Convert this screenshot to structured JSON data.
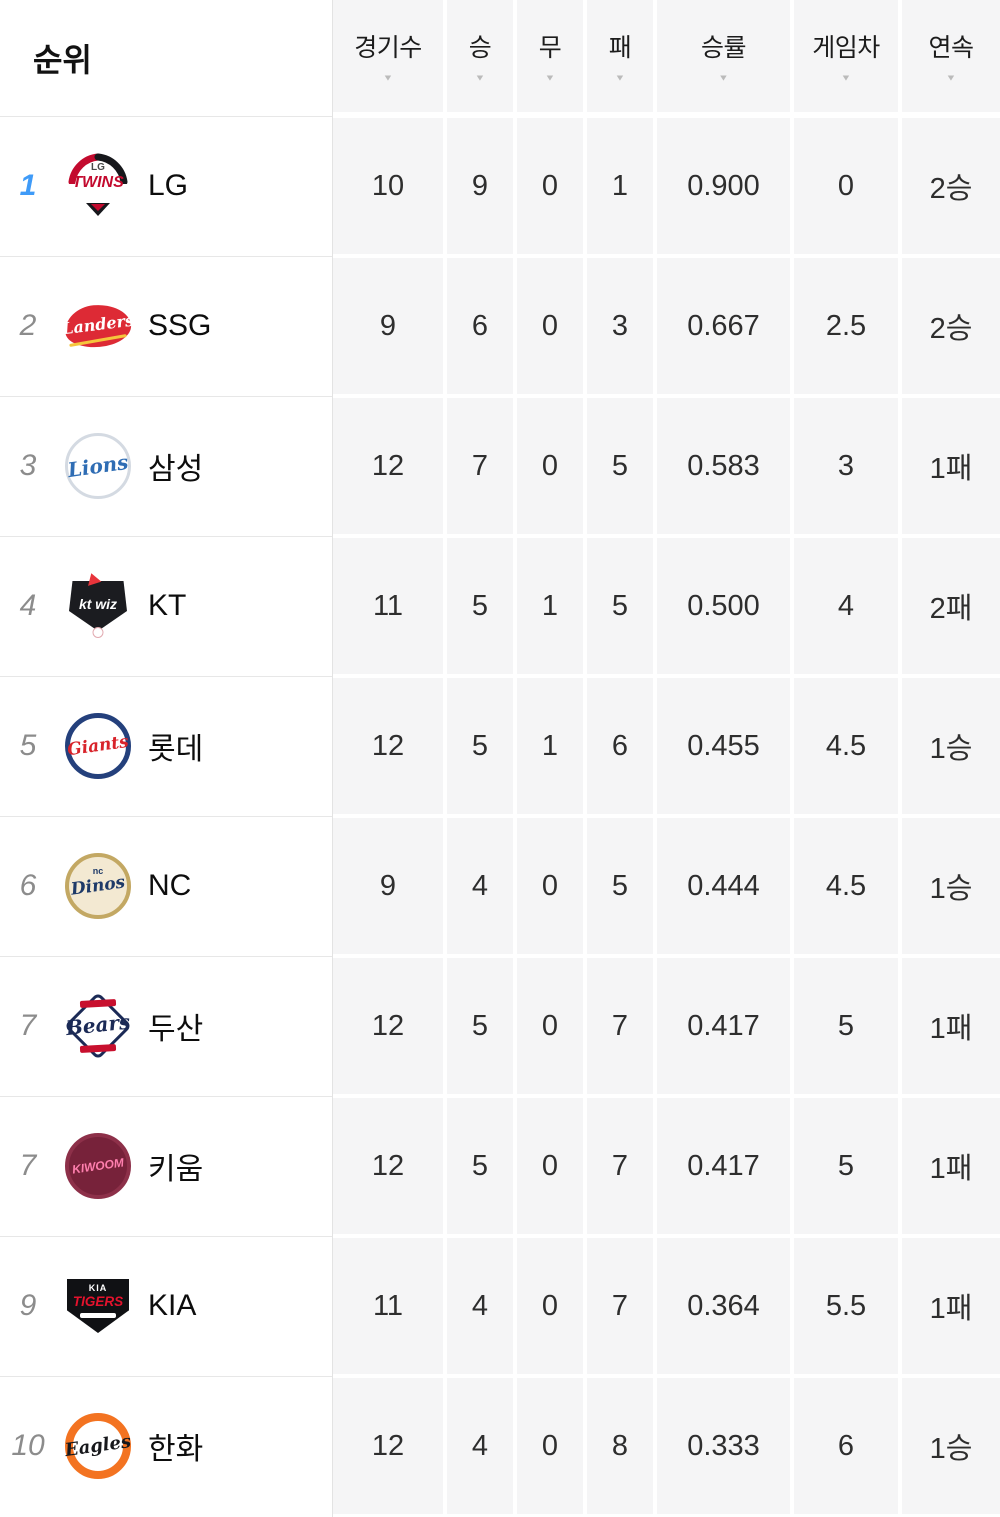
{
  "table": {
    "rank_label": "순위",
    "sort_icon": "▼",
    "columns": [
      {
        "key": "games",
        "label": "경기수"
      },
      {
        "key": "wins",
        "label": "승"
      },
      {
        "key": "draws",
        "label": "무"
      },
      {
        "key": "losses",
        "label": "패"
      },
      {
        "key": "win_rate",
        "label": "승률"
      },
      {
        "key": "games_behind",
        "label": "게임차"
      },
      {
        "key": "streak",
        "label": "연속"
      }
    ],
    "rows": [
      {
        "rank": "1",
        "rank_highlight": true,
        "team": "LG",
        "logo": "lg-twins",
        "games": "10",
        "wins": "9",
        "draws": "0",
        "losses": "1",
        "win_rate": "0.900",
        "games_behind": "0",
        "streak": "2승"
      },
      {
        "rank": "2",
        "rank_highlight": false,
        "team": "SSG",
        "logo": "ssg-landers",
        "games": "9",
        "wins": "6",
        "draws": "0",
        "losses": "3",
        "win_rate": "0.667",
        "games_behind": "2.5",
        "streak": "2승"
      },
      {
        "rank": "3",
        "rank_highlight": false,
        "team": "삼성",
        "logo": "samsung-lions",
        "games": "12",
        "wins": "7",
        "draws": "0",
        "losses": "5",
        "win_rate": "0.583",
        "games_behind": "3",
        "streak": "1패"
      },
      {
        "rank": "4",
        "rank_highlight": false,
        "team": "KT",
        "logo": "kt-wiz",
        "games": "11",
        "wins": "5",
        "draws": "1",
        "losses": "5",
        "win_rate": "0.500",
        "games_behind": "4",
        "streak": "2패"
      },
      {
        "rank": "5",
        "rank_highlight": false,
        "team": "롯데",
        "logo": "lotte-giants",
        "games": "12",
        "wins": "5",
        "draws": "1",
        "losses": "6",
        "win_rate": "0.455",
        "games_behind": "4.5",
        "streak": "1승"
      },
      {
        "rank": "6",
        "rank_highlight": false,
        "team": "NC",
        "logo": "nc-dinos",
        "games": "9",
        "wins": "4",
        "draws": "0",
        "losses": "5",
        "win_rate": "0.444",
        "games_behind": "4.5",
        "streak": "1승"
      },
      {
        "rank": "7",
        "rank_highlight": false,
        "team": "두산",
        "logo": "doosan-bears",
        "games": "12",
        "wins": "5",
        "draws": "0",
        "losses": "7",
        "win_rate": "0.417",
        "games_behind": "5",
        "streak": "1패"
      },
      {
        "rank": "7",
        "rank_highlight": false,
        "team": "키움",
        "logo": "kiwoom-heroes",
        "games": "12",
        "wins": "5",
        "draws": "0",
        "losses": "7",
        "win_rate": "0.417",
        "games_behind": "5",
        "streak": "1패"
      },
      {
        "rank": "9",
        "rank_highlight": false,
        "team": "KIA",
        "logo": "kia-tigers",
        "games": "11",
        "wins": "4",
        "draws": "0",
        "losses": "7",
        "win_rate": "0.364",
        "games_behind": "5.5",
        "streak": "1패"
      },
      {
        "rank": "10",
        "rank_highlight": false,
        "team": "한화",
        "logo": "hanwha-eagles",
        "games": "12",
        "wins": "4",
        "draws": "0",
        "losses": "8",
        "win_rate": "0.333",
        "games_behind": "6",
        "streak": "1승"
      }
    ]
  },
  "logos": {
    "lg-twins": {
      "kind": "twins",
      "arc_left": "#c30a2e",
      "arc_right": "#17181c",
      "sub": "LG",
      "sub_color": "#4a4a4a",
      "word": "TWINS",
      "word_color": "#c30a2e",
      "tri_outer": "#17181c",
      "tri_inner": "#c30a2e"
    },
    "ssg-landers": {
      "kind": "badge-script",
      "bg": "#dd2a35",
      "word": "Landers",
      "word_color": "#ffffff",
      "underline": "#f5c53c"
    },
    "samsung-lions": {
      "kind": "circle-script",
      "bg": "#ffffff",
      "ring": "#d4dae2",
      "ring_w": 3,
      "word": "Lions",
      "word_color": "#2f6db4",
      "word_size": 20
    },
    "kt-wiz": {
      "kind": "shield",
      "bg": "#1b1c20",
      "word": "kt wiz",
      "word_color": "#ffffff",
      "accent": "#e8343b"
    },
    "lotte-giants": {
      "kind": "circle-script",
      "bg": "#ffffff",
      "ring": "#24407c",
      "ring_w": 5,
      "word": "Giants",
      "word_color": "#d8232a",
      "word_size": 17
    },
    "nc-dinos": {
      "kind": "circle-script",
      "bg": "#f3e9d2",
      "ring": "#c3a863",
      "ring_w": 4,
      "sub": "nc",
      "sub_color": "#1e3a68",
      "word": "Dinos",
      "word_color": "#1e3a68",
      "word_size": 17
    },
    "doosan-bears": {
      "kind": "diamond-script",
      "border": "#1b2a56",
      "ribbon": "#c8102e",
      "word": "Bears",
      "word_color": "#1b2a56",
      "word_size": 20
    },
    "kiwoom-heroes": {
      "kind": "circle-script",
      "bg": "#77223a",
      "ring": "#8d3049",
      "ring_w": 4,
      "word": "KIWOOM",
      "word_color": "#ff7fae",
      "caps": true,
      "word_size": 12
    },
    "kia-tigers": {
      "kind": "plate",
      "bg": "#101114",
      "sub": "KIA",
      "sub_color": "#ffffff",
      "word": "TIGERS",
      "word_color": "#e4122d"
    },
    "hanwha-eagles": {
      "kind": "circle-script",
      "bg": "#ffffff",
      "ring": "#f37321",
      "ring_w": 8,
      "word": "Eagles",
      "word_color": "#17181c",
      "word_size": 18
    }
  },
  "colors": {
    "rank_highlight": "#3f9bf8",
    "rank_default": "#8c8c8c",
    "cell_background": "#f5f5f6",
    "separator": "#e7e7e7",
    "sort_arrow": "#bbbbbb",
    "stat_text": "#2e2e2e"
  }
}
